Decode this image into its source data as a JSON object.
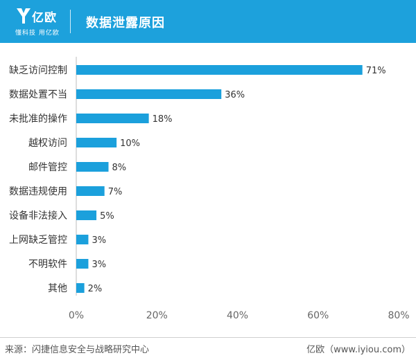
{
  "header": {
    "logo_name": "亿欧",
    "logo_slogan": "懂科技 用亿欧",
    "title": "数据泄露原因"
  },
  "colors": {
    "header_bg": "#1da1dc",
    "bar": "#1ba0dc",
    "axis": "#bbbbbb",
    "label_text": "#333333",
    "tick_text": "#666666"
  },
  "chart_data": {
    "type": "bar",
    "orientation": "horizontal",
    "title": "数据泄露原因",
    "categories": [
      "缺乏访问控制",
      "数据处置不当",
      "未批准的操作",
      "越权访问",
      "邮件管控",
      "数据违规使用",
      "设备非法接入",
      "上网缺乏管控",
      "不明软件",
      "其他"
    ],
    "values": [
      71,
      36,
      18,
      10,
      8,
      7,
      5,
      3,
      3,
      2
    ],
    "value_labels": [
      "71%",
      "36%",
      "18%",
      "10%",
      "8%",
      "7%",
      "5%",
      "3%",
      "3%",
      "2%"
    ],
    "x_ticks": [
      0,
      20,
      40,
      60,
      80
    ],
    "x_tick_labels": [
      "0%",
      "20%",
      "40%",
      "60%",
      "80%"
    ],
    "xlim": [
      0,
      80
    ],
    "grid": false,
    "legend": "none"
  },
  "footer": {
    "source": "来源：闪捷信息安全与战略研究中心",
    "brand": "亿欧（www.iyiou.com）"
  }
}
